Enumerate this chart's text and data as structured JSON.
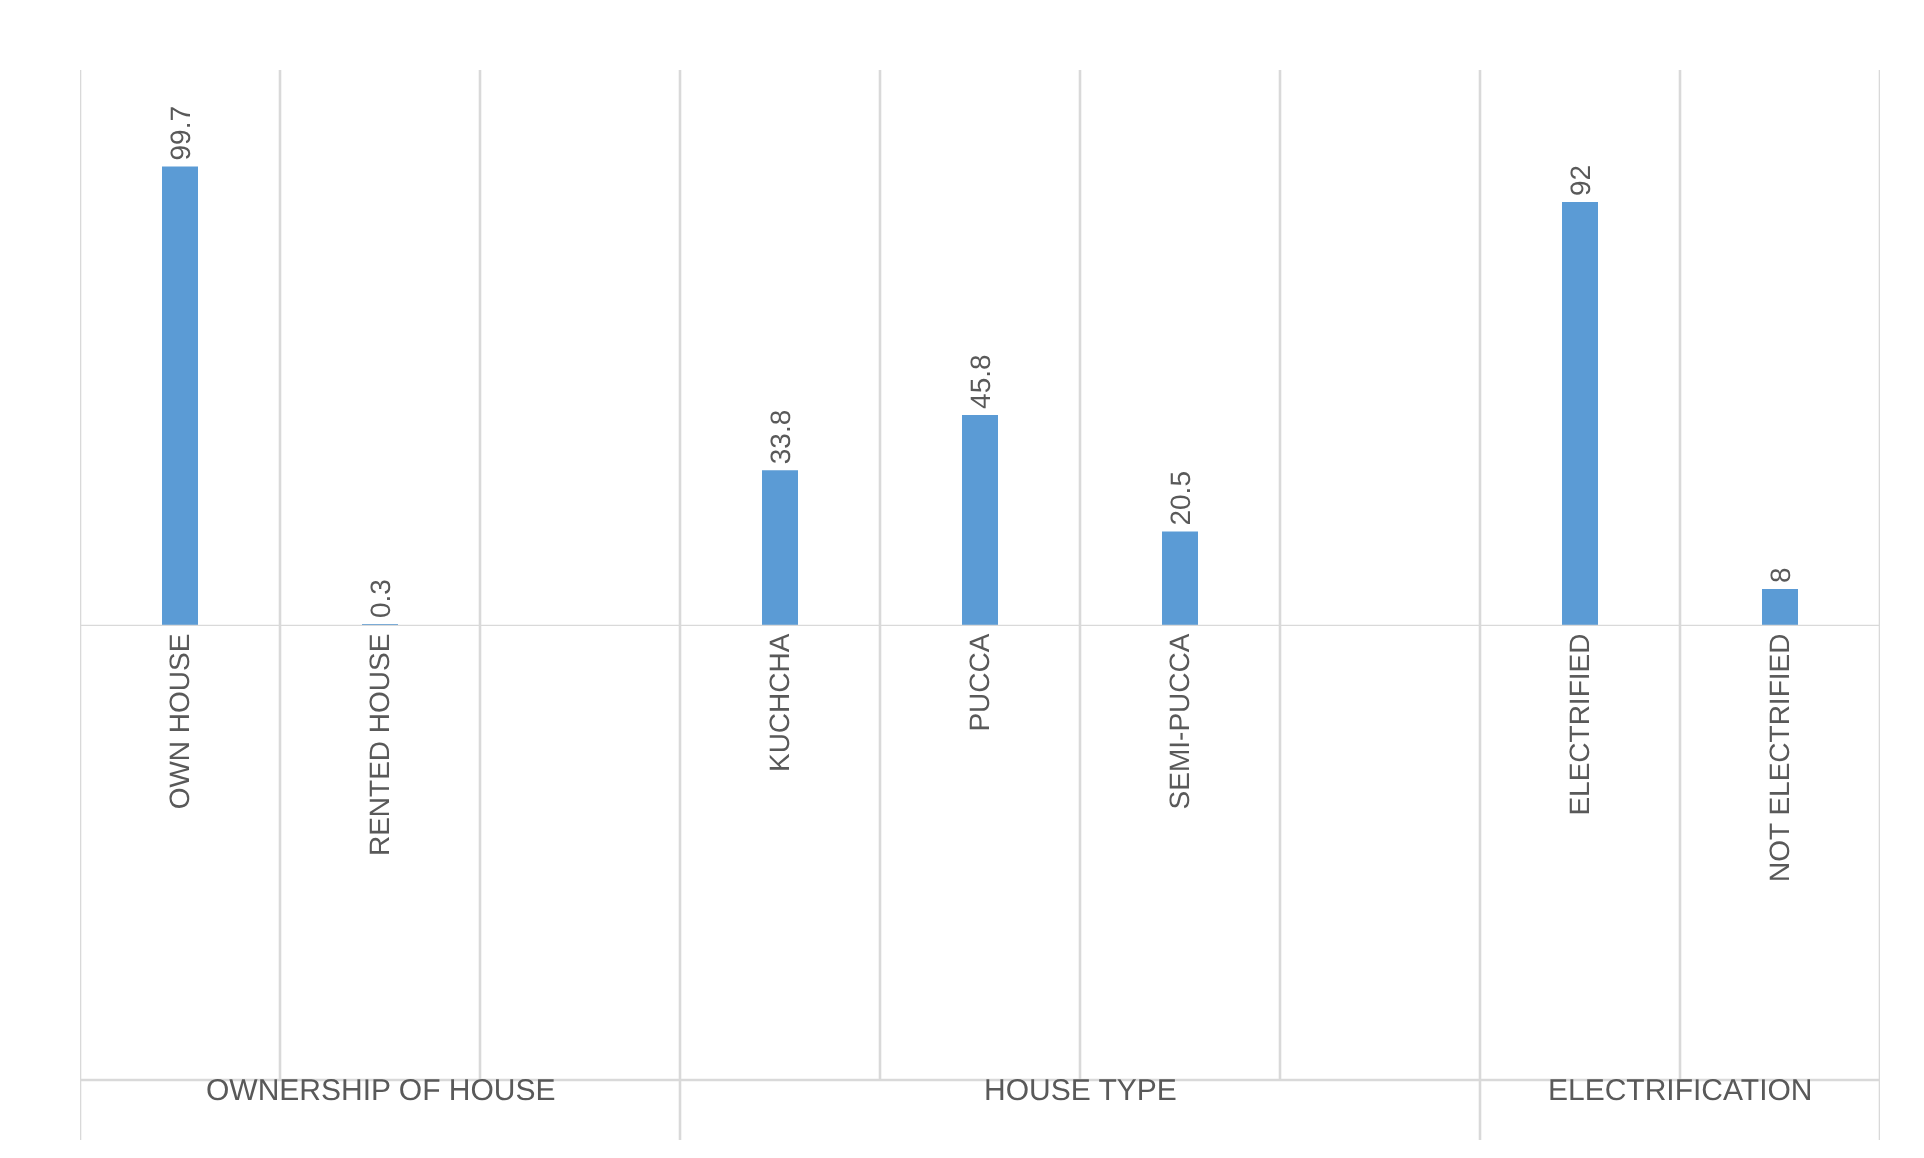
{
  "chart_data": {
    "type": "bar",
    "categories": [
      "OWN HOUSE",
      "RENTED HOUSE",
      null,
      "KUCHCHA",
      "PUCCA",
      "SEMI-PUCCA",
      null,
      "ELECTRIFIED",
      "NOT ELECTRIFIED"
    ],
    "values": [
      99.7,
      0.3,
      null,
      33.8,
      45.8,
      20.5,
      null,
      92,
      8
    ],
    "color": "#5b9bd5",
    "data_labels": true,
    "grid": "x",
    "annotations": [
      "OWNERSHIP OF HOUSE",
      "HOUSE TYPE",
      "ELECTRIFICATION"
    ]
  }
}
